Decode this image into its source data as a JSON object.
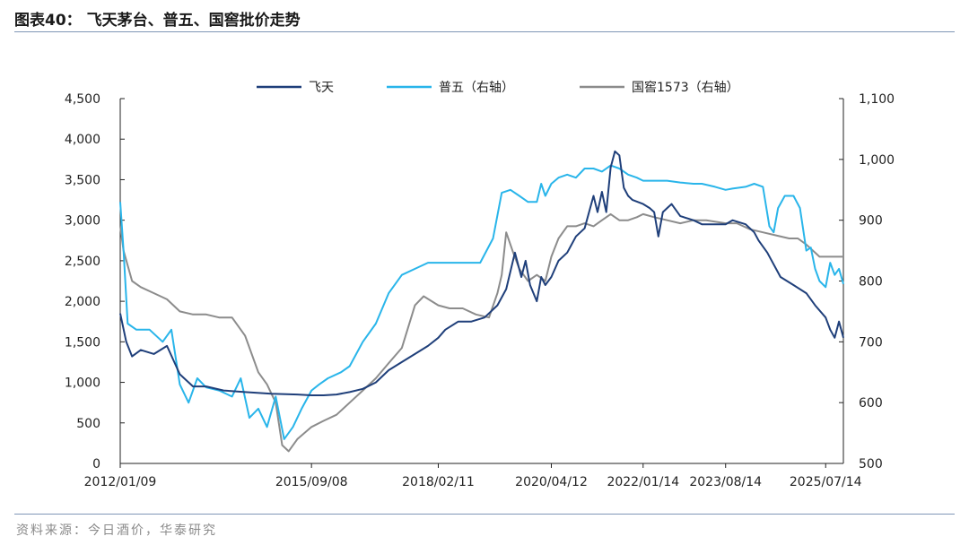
{
  "title": "图表40：  飞天茅台、普五、国窖批价走势",
  "source": "资料来源：今日酒价，华泰研究",
  "chart_data": {
    "type": "line",
    "legend_position": "top",
    "grid": false,
    "x_ticks": [
      "2012/01/09",
      "2015/09/08",
      "2018/02/11",
      "2020/04/12",
      "2022/01/14",
      "2023/08/14",
      "2025/07/14"
    ],
    "y_left": {
      "ticks": [
        "0",
        "500",
        "1,000",
        "1,500",
        "2,000",
        "2,500",
        "3,000",
        "3,500",
        "4,000",
        "4,500"
      ],
      "min": 0,
      "max": 4500
    },
    "y_right": {
      "ticks": [
        "500",
        "600",
        "700",
        "800",
        "900",
        "1,000",
        "1,100"
      ],
      "min": 500,
      "max": 1100
    },
    "series": [
      {
        "name": "飞天",
        "axis": "left",
        "color": "#1f3f7a",
        "points": [
          [
            "2012/01/09",
            1850
          ],
          [
            "2012/02/20",
            1500
          ],
          [
            "2012/04/01",
            1320
          ],
          [
            "2012/06/01",
            1400
          ],
          [
            "2012/09/01",
            1350
          ],
          [
            "2012/12/01",
            1450
          ],
          [
            "2013/03/01",
            1100
          ],
          [
            "2013/06/01",
            950
          ],
          [
            "2013/09/01",
            950
          ],
          [
            "2014/01/01",
            900
          ],
          [
            "2014/06/01",
            880
          ],
          [
            "2014/12/01",
            860
          ],
          [
            "2015/06/01",
            850
          ],
          [
            "2015/09/08",
            840
          ],
          [
            "2015/12/01",
            840
          ],
          [
            "2016/03/01",
            850
          ],
          [
            "2016/06/01",
            880
          ],
          [
            "2016/09/01",
            920
          ],
          [
            "2016/12/01",
            1000
          ],
          [
            "2017/03/01",
            1150
          ],
          [
            "2017/06/01",
            1250
          ],
          [
            "2017/09/01",
            1350
          ],
          [
            "2017/12/01",
            1450
          ],
          [
            "2018/02/11",
            1550
          ],
          [
            "2018/04/01",
            1650
          ],
          [
            "2018/07/01",
            1750
          ],
          [
            "2018/10/01",
            1750
          ],
          [
            "2019/01/01",
            1800
          ],
          [
            "2019/04/01",
            1950
          ],
          [
            "2019/06/01",
            2150
          ],
          [
            "2019/08/01",
            2600
          ],
          [
            "2019/09/15",
            2300
          ],
          [
            "2019/10/15",
            2500
          ],
          [
            "2019/11/15",
            2200
          ],
          [
            "2020/01/01",
            2000
          ],
          [
            "2020/02/01",
            2300
          ],
          [
            "2020/03/01",
            2200
          ],
          [
            "2020/04/12",
            2300
          ],
          [
            "2020/06/01",
            2500
          ],
          [
            "2020/08/01",
            2600
          ],
          [
            "2020/10/01",
            2800
          ],
          [
            "2020/12/01",
            2900
          ],
          [
            "2021/02/01",
            3300
          ],
          [
            "2021/03/01",
            3100
          ],
          [
            "2021/04/01",
            3350
          ],
          [
            "2021/05/01",
            3100
          ],
          [
            "2021/06/01",
            3650
          ],
          [
            "2021/07/01",
            3850
          ],
          [
            "2021/08/01",
            3800
          ],
          [
            "2021/09/01",
            3400
          ],
          [
            "2021/10/01",
            3300
          ],
          [
            "2021/11/01",
            3250
          ],
          [
            "2022/01/14",
            3200
          ],
          [
            "2022/03/01",
            3150
          ],
          [
            "2022/04/01",
            3100
          ],
          [
            "2022/05/01",
            2800
          ],
          [
            "2022/06/01",
            3100
          ],
          [
            "2022/07/01",
            3150
          ],
          [
            "2022/08/01",
            3200
          ],
          [
            "2022/10/01",
            3050
          ],
          [
            "2023/01/01",
            3000
          ],
          [
            "2023/03/01",
            2950
          ],
          [
            "2023/06/01",
            2950
          ],
          [
            "2023/08/14",
            2950
          ],
          [
            "2023/10/01",
            3000
          ],
          [
            "2024/01/01",
            2950
          ],
          [
            "2024/03/01",
            2850
          ],
          [
            "2024/04/01",
            2750
          ],
          [
            "2024/06/01",
            2600
          ],
          [
            "2024/09/01",
            2300
          ],
          [
            "2024/12/01",
            2200
          ],
          [
            "2025/03/01",
            2100
          ],
          [
            "2025/05/01",
            1950
          ],
          [
            "2025/07/14",
            1800
          ],
          [
            "2025/08/15",
            1650
          ],
          [
            "2025/09/15",
            1550
          ],
          [
            "2025/10/15",
            1750
          ],
          [
            "2025/11/15",
            1550
          ]
        ]
      },
      {
        "name": "普五（右轴）",
        "axis": "right",
        "color": "#29b5ea",
        "points": [
          [
            "2012/01/09",
            930
          ],
          [
            "2012/02/01",
            850
          ],
          [
            "2012/03/01",
            730
          ],
          [
            "2012/05/01",
            720
          ],
          [
            "2012/08/01",
            720
          ],
          [
            "2012/11/01",
            700
          ],
          [
            "2013/01/01",
            720
          ],
          [
            "2013/03/01",
            630
          ],
          [
            "2013/05/01",
            600
          ],
          [
            "2013/07/01",
            640
          ],
          [
            "2013/09/01",
            625
          ],
          [
            "2013/12/01",
            620
          ],
          [
            "2014/03/01",
            610
          ],
          [
            "2014/05/01",
            640
          ],
          [
            "2014/07/01",
            575
          ],
          [
            "2014/09/01",
            590
          ],
          [
            "2014/11/01",
            560
          ],
          [
            "2015/01/01",
            610
          ],
          [
            "2015/03/01",
            540
          ],
          [
            "2015/05/01",
            560
          ],
          [
            "2015/07/01",
            590
          ],
          [
            "2015/09/08",
            620
          ],
          [
            "2015/11/01",
            630
          ],
          [
            "2016/01/01",
            640
          ],
          [
            "2016/04/01",
            650
          ],
          [
            "2016/06/01",
            660
          ],
          [
            "2016/09/01",
            700
          ],
          [
            "2016/12/01",
            730
          ],
          [
            "2017/03/01",
            780
          ],
          [
            "2017/06/01",
            810
          ],
          [
            "2017/09/01",
            820
          ],
          [
            "2017/12/01",
            830
          ],
          [
            "2018/02/11",
            830
          ],
          [
            "2018/06/01",
            830
          ],
          [
            "2018/09/01",
            830
          ],
          [
            "2018/12/01",
            830
          ],
          [
            "2019/03/01",
            870
          ],
          [
            "2019/05/01",
            945
          ],
          [
            "2019/07/01",
            950
          ],
          [
            "2019/09/01",
            940
          ],
          [
            "2019/11/01",
            930
          ],
          [
            "2020/01/01",
            930
          ],
          [
            "2020/02/01",
            960
          ],
          [
            "2020/03/01",
            940
          ],
          [
            "2020/04/12",
            960
          ],
          [
            "2020/06/01",
            970
          ],
          [
            "2020/08/01",
            975
          ],
          [
            "2020/10/01",
            970
          ],
          [
            "2020/12/01",
            985
          ],
          [
            "2021/02/01",
            985
          ],
          [
            "2021/04/01",
            980
          ],
          [
            "2021/06/01",
            990
          ],
          [
            "2021/08/01",
            985
          ],
          [
            "2021/10/01",
            975
          ],
          [
            "2021/12/01",
            970
          ],
          [
            "2022/01/14",
            965
          ],
          [
            "2022/04/01",
            965
          ],
          [
            "2022/07/01",
            965
          ],
          [
            "2022/10/01",
            962
          ],
          [
            "2023/01/01",
            960
          ],
          [
            "2023/03/01",
            960
          ],
          [
            "2023/06/01",
            955
          ],
          [
            "2023/08/14",
            950
          ],
          [
            "2023/10/01",
            952
          ],
          [
            "2024/01/01",
            955
          ],
          [
            "2024/03/01",
            960
          ],
          [
            "2024/05/01",
            955
          ],
          [
            "2024/06/15",
            890
          ],
          [
            "2024/07/15",
            880
          ],
          [
            "2024/08/15",
            920
          ],
          [
            "2024/10/01",
            940
          ],
          [
            "2024/12/01",
            940
          ],
          [
            "2025/01/15",
            920
          ],
          [
            "2025/03/01",
            850
          ],
          [
            "2025/04/01",
            855
          ],
          [
            "2025/05/01",
            820
          ],
          [
            "2025/06/01",
            800
          ],
          [
            "2025/07/14",
            790
          ],
          [
            "2025/08/15",
            830
          ],
          [
            "2025/09/15",
            810
          ],
          [
            "2025/10/15",
            820
          ],
          [
            "2025/11/15",
            795
          ]
        ]
      },
      {
        "name": "国窖1573（右轴）",
        "axis": "right",
        "color": "#8c8c8c",
        "points": [
          [
            "2012/01/09",
            890
          ],
          [
            "2012/02/01",
            850
          ],
          [
            "2012/04/01",
            800
          ],
          [
            "2012/06/01",
            790
          ],
          [
            "2012/09/01",
            780
          ],
          [
            "2012/12/01",
            770
          ],
          [
            "2013/03/01",
            750
          ],
          [
            "2013/06/01",
            745
          ],
          [
            "2013/09/01",
            745
          ],
          [
            "2013/12/01",
            740
          ],
          [
            "2014/03/01",
            740
          ],
          [
            "2014/06/01",
            710
          ],
          [
            "2014/09/01",
            650
          ],
          [
            "2014/11/01",
            630
          ],
          [
            "2015/01/01",
            600
          ],
          [
            "2015/02/15",
            530
          ],
          [
            "2015/04/01",
            520
          ],
          [
            "2015/06/01",
            540
          ],
          [
            "2015/09/08",
            560
          ],
          [
            "2015/12/01",
            570
          ],
          [
            "2016/03/01",
            580
          ],
          [
            "2016/06/01",
            600
          ],
          [
            "2016/09/01",
            620
          ],
          [
            "2016/12/01",
            640
          ],
          [
            "2017/03/01",
            665
          ],
          [
            "2017/06/01",
            690
          ],
          [
            "2017/09/01",
            760
          ],
          [
            "2017/11/01",
            775
          ],
          [
            "2018/02/11",
            760
          ],
          [
            "2018/05/01",
            755
          ],
          [
            "2018/08/01",
            755
          ],
          [
            "2018/11/01",
            745
          ],
          [
            "2019/02/01",
            740
          ],
          [
            "2019/04/01",
            780
          ],
          [
            "2019/05/01",
            810
          ],
          [
            "2019/06/01",
            880
          ],
          [
            "2019/07/15",
            850
          ],
          [
            "2019/09/01",
            820
          ],
          [
            "2019/11/01",
            800
          ],
          [
            "2020/01/01",
            810
          ],
          [
            "2020/03/01",
            800
          ],
          [
            "2020/04/12",
            840
          ],
          [
            "2020/06/01",
            870
          ],
          [
            "2020/08/01",
            890
          ],
          [
            "2020/10/01",
            890
          ],
          [
            "2020/12/01",
            895
          ],
          [
            "2021/02/01",
            890
          ],
          [
            "2021/04/01",
            900
          ],
          [
            "2021/06/01",
            910
          ],
          [
            "2021/08/01",
            900
          ],
          [
            "2021/10/01",
            900
          ],
          [
            "2021/12/01",
            905
          ],
          [
            "2022/01/14",
            910
          ],
          [
            "2022/04/01",
            905
          ],
          [
            "2022/07/01",
            900
          ],
          [
            "2022/10/01",
            895
          ],
          [
            "2023/01/01",
            900
          ],
          [
            "2023/04/01",
            900
          ],
          [
            "2023/08/14",
            895
          ],
          [
            "2023/11/01",
            895
          ],
          [
            "2024/02/01",
            885
          ],
          [
            "2024/05/01",
            880
          ],
          [
            "2024/08/01",
            875
          ],
          [
            "2024/11/01",
            870
          ],
          [
            "2025/01/01",
            870
          ],
          [
            "2025/03/01",
            860
          ],
          [
            "2025/06/01",
            840
          ],
          [
            "2025/07/14",
            840
          ],
          [
            "2025/10/01",
            840
          ],
          [
            "2025/11/15",
            840
          ]
        ]
      }
    ]
  }
}
